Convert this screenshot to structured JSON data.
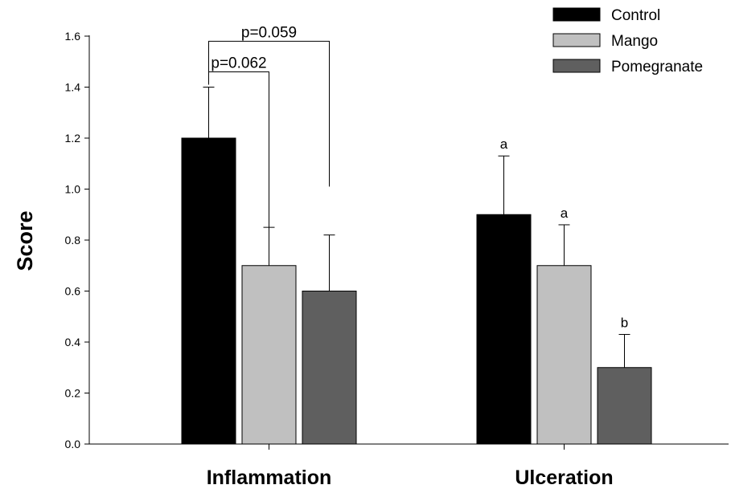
{
  "chart_data": {
    "type": "bar",
    "title": "",
    "xlabel": "",
    "ylabel": "Score",
    "ylim": [
      0,
      1.6
    ],
    "yticks": [
      "0.0",
      "0.2",
      "0.4",
      "0.6",
      "0.8",
      "1.0",
      "1.2",
      "1.4",
      "1.6"
    ],
    "categories": [
      "Inflammation",
      "Ulceration"
    ],
    "series": [
      {
        "name": "Control",
        "color": "#000000",
        "values": [
          1.2,
          0.9
        ],
        "errors": [
          0.2,
          0.23
        ]
      },
      {
        "name": "Mango",
        "color": "#c0c0c0",
        "values": [
          0.7,
          0.7
        ],
        "errors": [
          0.15,
          0.16
        ]
      },
      {
        "name": "Pomegranate",
        "color": "#5f5f5f",
        "values": [
          0.6,
          0.3
        ],
        "errors": [
          0.22,
          0.13
        ]
      }
    ],
    "letters": [
      {
        "category": 1,
        "series": 0,
        "text": "a"
      },
      {
        "category": 1,
        "series": 1,
        "text": "a"
      },
      {
        "category": 1,
        "series": 2,
        "text": "b"
      }
    ],
    "comparisons": [
      {
        "category": 0,
        "from": 0,
        "to": 1,
        "y": 1.46,
        "drop": 0.85,
        "label": "p=0.062"
      },
      {
        "category": 0,
        "from": 0,
        "to": 2,
        "y": 1.58,
        "drop": 1.01,
        "label": "p=0.059"
      }
    ],
    "legend": {
      "position": "top-right"
    },
    "grid": false
  }
}
